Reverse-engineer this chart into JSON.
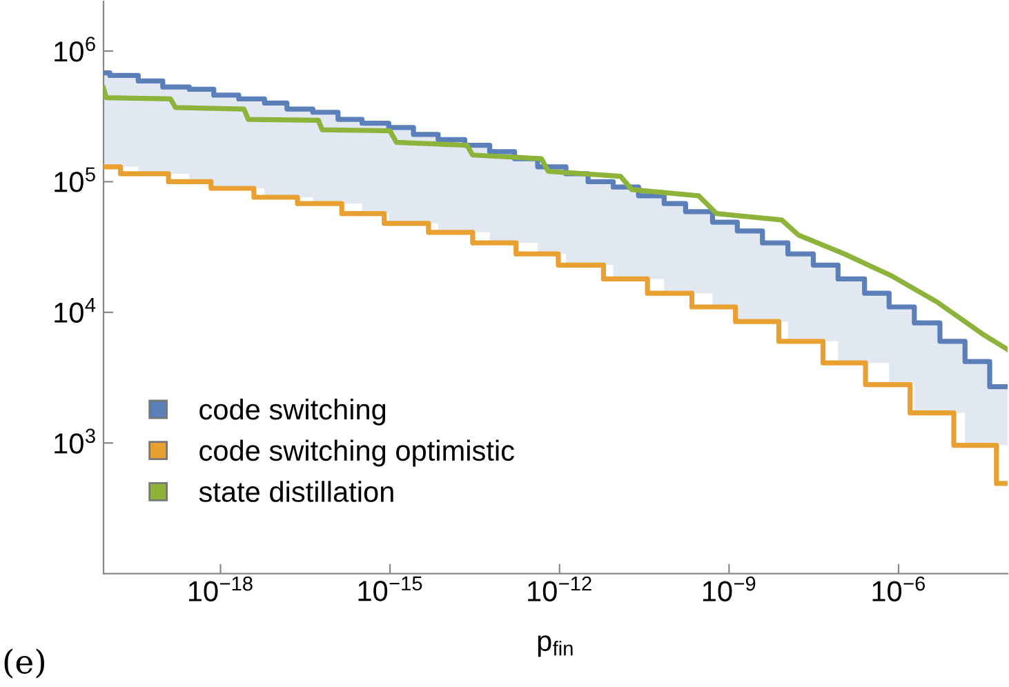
{
  "chart_data": {
    "type": "step",
    "xlabel": "p$_{fin}$",
    "annotations": [
      "(e)"
    ],
    "log": "xy",
    "xlim": [
      8.5e-21,
      8.5e-05
    ],
    "ylim": [
      100,
      2400000.0
    ],
    "xticks": [
      {
        "value": 1e-18,
        "label": "10$^{−18}$"
      },
      {
        "value": 1e-15,
        "label": "10$^{−15}$"
      },
      {
        "value": 1e-12,
        "label": "10$^{−12}$"
      },
      {
        "value": 1e-09,
        "label": "10$^{−9}$"
      },
      {
        "value": 1e-06,
        "label": "10$^{−6}$"
      }
    ],
    "yticks": [
      {
        "value": 1000,
        "label": "10$^{3}$"
      },
      {
        "value": 10000,
        "label": "10$^{4}$"
      },
      {
        "value": 100000,
        "label": "10$^{5}$"
      },
      {
        "value": 1000000,
        "label": "10$^{6}$"
      }
    ],
    "grid": false,
    "legend": "bottom left",
    "marker": "none",
    "line_style": "solid",
    "series": [
      {
        "name": "code switching",
        "color": "#5b7fb8",
        "x": [
          8.5e-21,
          1.1e-20,
          3.5e-20,
          9.5e-20,
          2.8e-19,
          7.6e-19,
          2.1e-18,
          6e-18,
          1.5e-17,
          4.3e-17,
          1.2e-16,
          3.2e-16,
          9.5e-16,
          2.6e-15,
          7.1e-15,
          2.1e-14,
          5.8e-14,
          1.6e-13,
          4.1e-13,
          1.3e-12,
          3.2e-12,
          8.9e-12,
          2.5e-11,
          7.1e-11,
          1.7e-10,
          5.1e-10,
          1.4e-09,
          3.9e-09,
          1.1e-08,
          3.1e-08,
          8.5e-08,
          2.5e-07,
          6.8e-07,
          1.9e-06,
          5.4e-06,
          1.5e-05,
          4.1e-05,
          8.5e-05
        ],
        "values": [
          680000.0,
          650000.0,
          590000.0,
          530000.0,
          510000.0,
          460000.0,
          430000.0,
          400000.0,
          360000.0,
          340000.0,
          300000.0,
          280000.0,
          260000.0,
          230000.0,
          210000.0,
          190000.0,
          170000.0,
          150000.0,
          130000.0,
          115000.0,
          100000.0,
          91000.0,
          78000.0,
          68000.0,
          59000.0,
          49000.0,
          42000.0,
          34000.0,
          28000.0,
          23000.0,
          18000.0,
          14000.0,
          11000.0,
          8300.0,
          6000.0,
          4200.0,
          2700.0,
          2700.0
        ],
        "upper": [
          680000.0,
          650000.0,
          590000.0,
          530000.0,
          510000.0,
          460000.0,
          430000.0,
          400000.0,
          360000.0,
          340000.0,
          300000.0,
          280000.0,
          260000.0,
          230000.0,
          210000.0,
          190000.0,
          170000.0,
          150000.0,
          130000.0,
          115000.0,
          100000.0,
          91000.0,
          78000.0,
          68000.0,
          59000.0,
          49000.0,
          42000.0,
          34000.0,
          28000.0,
          23000.0,
          18000.0,
          14000.0,
          11000.0,
          8300.0,
          6000.0,
          4200.0,
          2700.0,
          2700.0
        ],
        "lower": [
          130000.0,
          130000.0,
          115000.0,
          115000.0,
          100000.0,
          89000.0,
          89000.0,
          76000.0,
          76000.0,
          68000.0,
          68000.0,
          57000.0,
          48000.0,
          48000.0,
          41000.0,
          41000.0,
          34000.0,
          34000.0,
          28000.0,
          23000.0,
          23000.0,
          18000.0,
          18000.0,
          14000.0,
          14000.0,
          11000.0,
          8500.0,
          8500.0,
          6000.0,
          6000.0,
          4100.0,
          4100.0,
          2800.0,
          1700.0,
          1700.0,
          960.0,
          960.0,
          490.0
        ]
      },
      {
        "name": "code switching optimistic",
        "color": "#e8a030",
        "x": [
          8.5e-21,
          1.7e-20,
          1.2e-19,
          6.8e-19,
          3.9e-18,
          2.3e-17,
          1.4e-16,
          7.9e-16,
          4.8e-15,
          2.9e-14,
          1.7e-13,
          9.5e-13,
          6e-12,
          3.6e-11,
          2.2e-10,
          1.3e-09,
          7.6e-09,
          4.6e-08,
          2.6e-07,
          1.6e-06,
          9.5e-06,
          5.4e-05,
          8.5e-05
        ],
        "values": [
          130000.0,
          115000.0,
          100000.0,
          89000.0,
          76000.0,
          68000.0,
          57000.0,
          48000.0,
          41000.0,
          34000.0,
          28000.0,
          23000.0,
          18000.0,
          14000.0,
          11000.0,
          8500.0,
          6000.0,
          4100.0,
          2800.0,
          1700.0,
          960.0,
          490.0,
          490.0
        ]
      },
      {
        "name": "state distillation",
        "type": "line",
        "color": "#8db33a",
        "x": [
          8.5e-21,
          9.5e-21,
          1.3e-19,
          1.6e-19,
          2.6e-18,
          3.1e-18,
          5.4e-17,
          6.3e-17,
          1e-15,
          1.3e-15,
          2.3e-14,
          2.9e-14,
          4.8e-13,
          6.3e-13,
          1.2e-11,
          1.9e-11,
          2.9e-10,
          6e-10,
          8.5e-09,
          1.7e-08,
          1.1e-07,
          7.6e-07,
          4.8e-06,
          3.1e-05,
          8.5e-05
        ],
        "values": [
          520000.0,
          440000.0,
          430000.0,
          370000.0,
          360000.0,
          300000.0,
          295000.0,
          250000.0,
          245000.0,
          200000.0,
          190000.0,
          160000.0,
          150000.0,
          120000.0,
          110000.0,
          87000.0,
          78000.0,
          57000.0,
          51000.0,
          39000.0,
          28000.0,
          19000.0,
          12000.0,
          6800.0,
          5200.0
        ]
      }
    ]
  }
}
